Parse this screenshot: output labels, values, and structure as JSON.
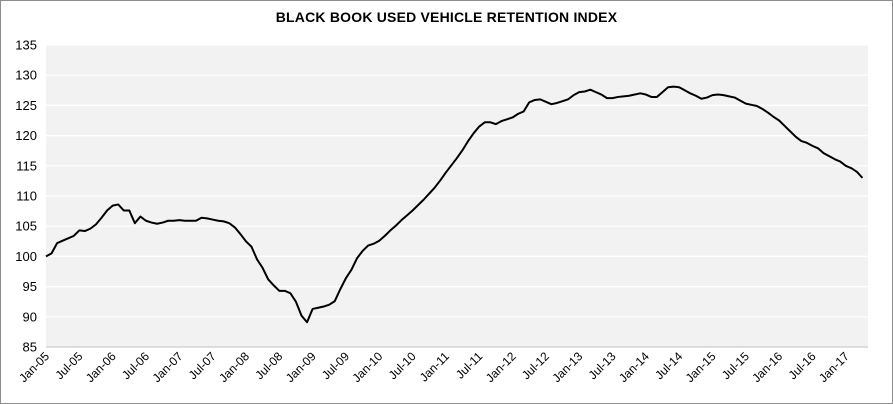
{
  "chart_data": {
    "type": "line",
    "title": "BLACK BOOK USED VEHICLE RETENTION INDEX",
    "xlabel": "",
    "ylabel": "",
    "ylim": [
      85,
      135
    ],
    "yticks": [
      85,
      90,
      95,
      100,
      105,
      110,
      115,
      120,
      125,
      130,
      135
    ],
    "xticks": [
      "Jan-05",
      "Jul-05",
      "Jan-06",
      "Jul-06",
      "Jan-07",
      "Jul-07",
      "Jan-08",
      "Jul-08",
      "Jan-09",
      "Jul-09",
      "Jan-10",
      "Jul-10",
      "Jan-11",
      "Jul-11",
      "Jan-12",
      "Jul-12",
      "Jan-13",
      "Jul-13",
      "Jan-14",
      "Jul-14",
      "Jan-15",
      "Jul-15",
      "Jan-16",
      "Jul-16",
      "Jan-17"
    ],
    "grid": true,
    "line_color": "#000000",
    "plot_background": "#f2f2f2",
    "grid_color": "#ffffff",
    "x": [
      "Jan-05",
      "Feb-05",
      "Mar-05",
      "Apr-05",
      "May-05",
      "Jun-05",
      "Jul-05",
      "Aug-05",
      "Sep-05",
      "Oct-05",
      "Nov-05",
      "Dec-05",
      "Jan-06",
      "Feb-06",
      "Mar-06",
      "Apr-06",
      "May-06",
      "Jun-06",
      "Jul-06",
      "Aug-06",
      "Sep-06",
      "Oct-06",
      "Nov-06",
      "Dec-06",
      "Jan-07",
      "Feb-07",
      "Mar-07",
      "Apr-07",
      "May-07",
      "Jun-07",
      "Jul-07",
      "Aug-07",
      "Sep-07",
      "Oct-07",
      "Nov-07",
      "Dec-07",
      "Jan-08",
      "Feb-08",
      "Mar-08",
      "Apr-08",
      "May-08",
      "Jun-08",
      "Jul-08",
      "Aug-08",
      "Sep-08",
      "Oct-08",
      "Nov-08",
      "Dec-08",
      "Jan-09",
      "Feb-09",
      "Mar-09",
      "Apr-09",
      "May-09",
      "Jun-09",
      "Jul-09",
      "Aug-09",
      "Sep-09",
      "Oct-09",
      "Nov-09",
      "Dec-09",
      "Jan-10",
      "Feb-10",
      "Mar-10",
      "Apr-10",
      "May-10",
      "Jun-10",
      "Jul-10",
      "Aug-10",
      "Sep-10",
      "Oct-10",
      "Nov-10",
      "Dec-10",
      "Jan-11",
      "Feb-11",
      "Mar-11",
      "Apr-11",
      "May-11",
      "Jun-11",
      "Jul-11",
      "Aug-11",
      "Sep-11",
      "Oct-11",
      "Nov-11",
      "Dec-11",
      "Jan-12",
      "Feb-12",
      "Mar-12",
      "Apr-12",
      "May-12",
      "Jun-12",
      "Jul-12",
      "Aug-12",
      "Sep-12",
      "Oct-12",
      "Nov-12",
      "Dec-12",
      "Jan-13",
      "Feb-13",
      "Mar-13",
      "Apr-13",
      "May-13",
      "Jun-13",
      "Jul-13",
      "Aug-13",
      "Sep-13",
      "Oct-13",
      "Nov-13",
      "Dec-13",
      "Jan-14",
      "Feb-14",
      "Mar-14",
      "Apr-14",
      "May-14",
      "Jun-14",
      "Jul-14",
      "Aug-14",
      "Sep-14",
      "Oct-14",
      "Nov-14",
      "Dec-14",
      "Jan-15",
      "Feb-15",
      "Mar-15",
      "Apr-15",
      "May-15",
      "Jun-15",
      "Jul-15",
      "Aug-15",
      "Sep-15",
      "Oct-15",
      "Nov-15",
      "Dec-15",
      "Jan-16",
      "Feb-16",
      "Mar-16",
      "Apr-16",
      "May-16",
      "Jun-16",
      "Jul-16",
      "Aug-16",
      "Sep-16",
      "Oct-16",
      "Nov-16",
      "Dec-16",
      "Jan-17",
      "Feb-17",
      "Mar-17",
      "Apr-17"
    ],
    "series": [
      {
        "name": "",
        "values": [
          100.0,
          100.5,
          102.2,
          102.6,
          103.0,
          103.4,
          104.3,
          104.2,
          104.6,
          105.3,
          106.4,
          107.6,
          108.4,
          108.6,
          107.6,
          107.6,
          105.5,
          106.6,
          105.9,
          105.6,
          105.4,
          105.6,
          105.9,
          105.9,
          106.0,
          105.9,
          105.9,
          105.9,
          106.4,
          106.3,
          106.1,
          105.9,
          105.8,
          105.5,
          104.8,
          103.7,
          102.5,
          101.6,
          99.5,
          98.1,
          96.2,
          95.2,
          94.3,
          94.3,
          93.9,
          92.5,
          90.2,
          89.1,
          91.3,
          91.5,
          91.7,
          92.0,
          92.6,
          94.6,
          96.4,
          97.8,
          99.7,
          100.9,
          101.8,
          102.1,
          102.6,
          103.4,
          104.3,
          105.1,
          106.0,
          106.8,
          107.6,
          108.5,
          109.4,
          110.4,
          111.4,
          112.6,
          113.9,
          115.1,
          116.3,
          117.6,
          119.1,
          120.4,
          121.5,
          122.2,
          122.2,
          121.9,
          122.4,
          122.7,
          123.0,
          123.6,
          124.0,
          125.5,
          125.9,
          126.0,
          125.6,
          125.2,
          125.4,
          125.7,
          126.0,
          126.7,
          127.2,
          127.3,
          127.6,
          127.2,
          126.8,
          126.2,
          126.2,
          126.4,
          126.5,
          126.6,
          126.8,
          127.0,
          126.8,
          126.4,
          126.4,
          127.2,
          128.0,
          128.1,
          128.0,
          127.5,
          127.0,
          126.6,
          126.1,
          126.3,
          126.7,
          126.8,
          126.7,
          126.5,
          126.3,
          125.8,
          125.3,
          125.1,
          124.9,
          124.4,
          123.8,
          123.1,
          122.5,
          121.6,
          120.7,
          119.8,
          119.1,
          118.8,
          118.3,
          117.9,
          117.1,
          116.6,
          116.1,
          115.7,
          115.0,
          114.6,
          114.0,
          113.0
        ]
      }
    ]
  }
}
